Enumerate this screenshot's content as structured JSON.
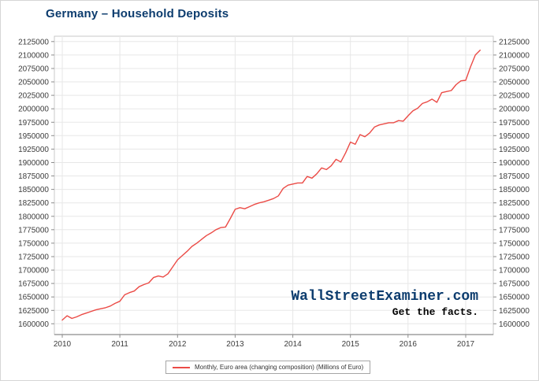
{
  "header": {
    "title": "Germany – Household Deposits",
    "title_color": "#0c3c6e"
  },
  "watermark": {
    "brand": "WallStreetExaminer.com",
    "brand_color": "#0c3c6e",
    "tagline": "Get the facts.",
    "tagline_color": "#000000"
  },
  "legend": {
    "label": "Monthly, Euro area (changing composition) (Millions of Euro)"
  },
  "chart_data": {
    "type": "line",
    "title": "Germany – Household Deposits",
    "xlabel": "",
    "ylabel": "",
    "unit": "Millions of Euro",
    "grid": true,
    "legend_position": "bottom-center",
    "x_ticks": [
      "2010",
      "2011",
      "2012",
      "2013",
      "2014",
      "2015",
      "2016",
      "2017"
    ],
    "y_ticks": [
      2125000,
      2100000,
      2075000,
      2050000,
      2025000,
      2000000,
      1975000,
      1950000,
      1925000,
      1900000,
      1875000,
      1850000,
      1825000,
      1800000,
      1775000,
      1750000,
      1725000,
      1700000,
      1675000,
      1650000,
      1625000,
      1600000
    ],
    "ylim": [
      1580000,
      2135000
    ],
    "series": [
      {
        "name": "Monthly, Euro area (changing composition) (Millions of Euro)",
        "color": "#eb4b46",
        "start": "2010-01",
        "end": "2017-04",
        "frequency": "monthly",
        "values": [
          1607000,
          1615000,
          1610000,
          1613000,
          1617000,
          1620000,
          1623000,
          1626000,
          1628000,
          1630000,
          1633000,
          1638000,
          1642000,
          1654000,
          1658000,
          1661000,
          1669000,
          1673000,
          1676000,
          1686000,
          1689000,
          1687000,
          1693000,
          1706000,
          1719000,
          1727000,
          1735000,
          1744000,
          1750000,
          1757000,
          1764000,
          1769000,
          1775000,
          1779000,
          1780000,
          1796000,
          1813000,
          1816000,
          1814000,
          1818000,
          1822000,
          1825000,
          1827000,
          1830000,
          1833000,
          1838000,
          1852000,
          1858000,
          1860000,
          1862000,
          1862000,
          1874000,
          1871000,
          1879000,
          1890000,
          1887000,
          1894000,
          1906000,
          1901000,
          1918000,
          1938000,
          1934000,
          1952000,
          1948000,
          1955000,
          1966000,
          1970000,
          1972000,
          1974000,
          1974000,
          1978000,
          1977000,
          1987000,
          1996000,
          2001000,
          2010000,
          2013000,
          2018000,
          2012000,
          2030000,
          2032000,
          2034000,
          2045000,
          2052000,
          2053000,
          2078000,
          2100000,
          2109000
        ]
      }
    ],
    "style": {
      "gridline": "#e7e7e7",
      "plot_border": "#c9c9c9",
      "axis_line": "#8c8c8c",
      "tick": "#8c8c8c",
      "label_color": "#3d3d3d",
      "plot_background": "#ffffff"
    }
  }
}
